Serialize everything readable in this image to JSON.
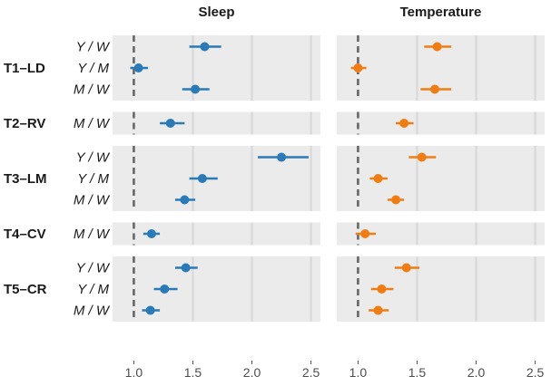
{
  "chart_data": {
    "type": "forest",
    "panels": [
      {
        "title": "Sleep",
        "color": "#2a7ab8"
      },
      {
        "title": "Temperature",
        "color": "#f07c14"
      }
    ],
    "xlim": [
      0.82,
      2.58
    ],
    "xticks": [
      1.0,
      1.5,
      2.0,
      2.5
    ],
    "xtick_labels": [
      "1.0",
      "1.5",
      "2.0",
      "2.5"
    ],
    "reference_line": 1.0,
    "groups": [
      {
        "label": "T1–LD",
        "rows": [
          {
            "label": "Y / W",
            "values": [
              {
                "est": 1.6,
                "lo": 1.47,
                "hi": 1.74
              },
              {
                "est": 1.67,
                "lo": 1.56,
                "hi": 1.79
              }
            ]
          },
          {
            "label": "Y / M",
            "values": [
              {
                "est": 1.04,
                "lo": 0.97,
                "hi": 1.12
              },
              {
                "est": 1.0,
                "lo": 0.94,
                "hi": 1.07
              }
            ]
          },
          {
            "label": "M / W",
            "values": [
              {
                "est": 1.52,
                "lo": 1.41,
                "hi": 1.64
              },
              {
                "est": 1.65,
                "lo": 1.53,
                "hi": 1.79
              }
            ]
          }
        ]
      },
      {
        "label": "T2–RV",
        "rows": [
          {
            "label": "M / W",
            "values": [
              {
                "est": 1.31,
                "lo": 1.22,
                "hi": 1.43
              },
              {
                "est": 1.39,
                "lo": 1.32,
                "hi": 1.47
              }
            ]
          }
        ]
      },
      {
        "label": "T3–LM",
        "rows": [
          {
            "label": "Y / W",
            "values": [
              {
                "est": 2.25,
                "lo": 2.05,
                "hi": 2.48
              },
              {
                "est": 1.54,
                "lo": 1.43,
                "hi": 1.66
              }
            ]
          },
          {
            "label": "Y / M",
            "values": [
              {
                "est": 1.58,
                "lo": 1.47,
                "hi": 1.71
              },
              {
                "est": 1.17,
                "lo": 1.1,
                "hi": 1.25
              }
            ]
          },
          {
            "label": "M / W",
            "values": [
              {
                "est": 1.43,
                "lo": 1.35,
                "hi": 1.52
              },
              {
                "est": 1.32,
                "lo": 1.25,
                "hi": 1.39
              }
            ]
          }
        ]
      },
      {
        "label": "T4–CV",
        "rows": [
          {
            "label": "M / W",
            "values": [
              {
                "est": 1.15,
                "lo": 1.08,
                "hi": 1.22
              },
              {
                "est": 1.06,
                "lo": 0.98,
                "hi": 1.15
              }
            ]
          }
        ]
      },
      {
        "label": "T5–CR",
        "rows": [
          {
            "label": "Y / W",
            "values": [
              {
                "est": 1.44,
                "lo": 1.35,
                "hi": 1.54
              },
              {
                "est": 1.41,
                "lo": 1.31,
                "hi": 1.52
              }
            ]
          },
          {
            "label": "Y / M",
            "values": [
              {
                "est": 1.26,
                "lo": 1.17,
                "hi": 1.37
              },
              {
                "est": 1.2,
                "lo": 1.11,
                "hi": 1.3
              }
            ]
          },
          {
            "label": "M / W",
            "values": [
              {
                "est": 1.14,
                "lo": 1.07,
                "hi": 1.22
              },
              {
                "est": 1.17,
                "lo": 1.09,
                "hi": 1.26
              }
            ]
          }
        ]
      }
    ]
  }
}
